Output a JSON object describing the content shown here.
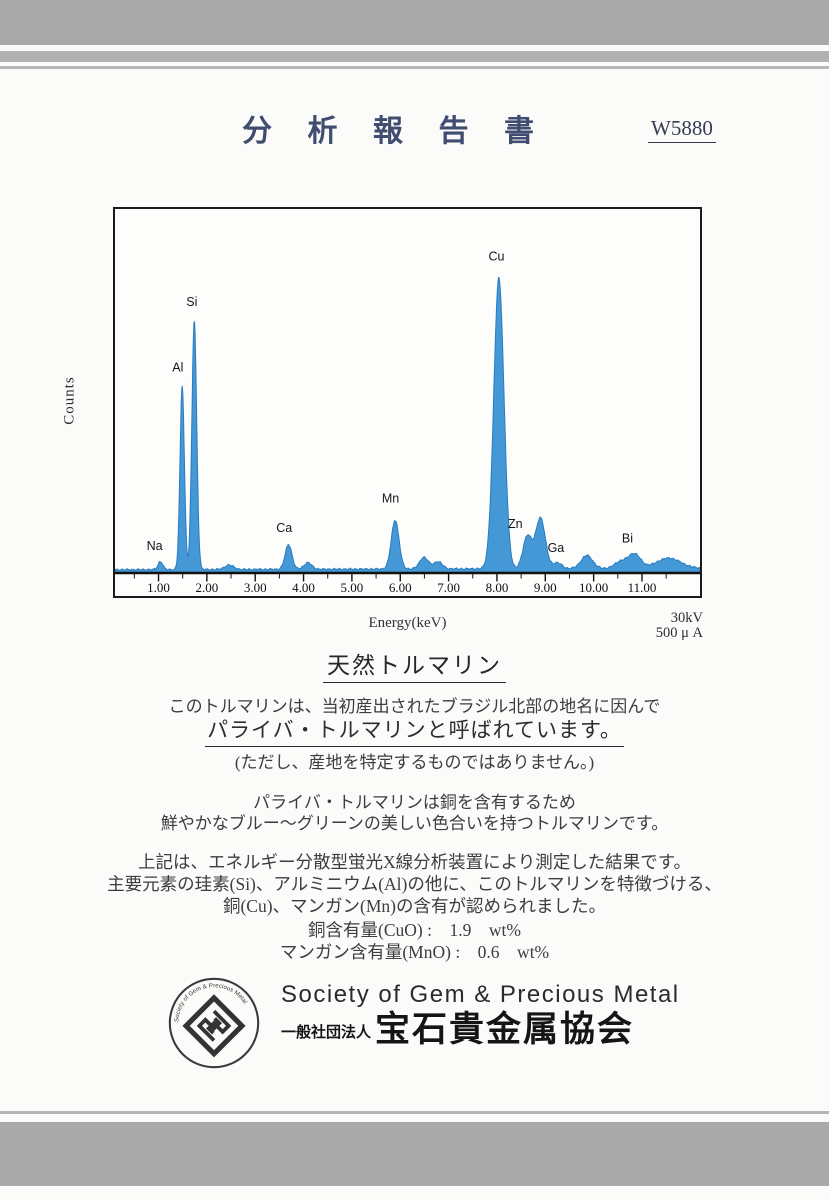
{
  "page": {
    "title": "分 析 報 告 書",
    "report_no": "W5880"
  },
  "chart_data": {
    "type": "area",
    "title": "EDX spectrum",
    "xlabel": "Energy(keV)",
    "ylabel": "Counts",
    "cond_kv": "30kV",
    "cond_ua": "500 μ A",
    "xlim": [
      0.1,
      12.2
    ],
    "x_ticks": [
      "1.00",
      "2.00",
      "3.00",
      "4.00",
      "5.00",
      "6.00",
      "7.00",
      "8.00",
      "9.00",
      "10.00",
      "11.00"
    ],
    "grid": false,
    "color": "#4598d6",
    "stroke": "#2a7cc0",
    "background": 0.009,
    "peaks": [
      {
        "element": "Na",
        "keV": 1.04,
        "h": 0.022,
        "sigma": 0.05,
        "label_at": [
          0.92,
          0.055
        ]
      },
      {
        "element": "Al",
        "keV": 1.49,
        "h": 0.505,
        "sigma": 0.045,
        "label_at": [
          1.4,
          0.545
        ]
      },
      {
        "element": "Si",
        "keV": 1.74,
        "h": 0.685,
        "sigma": 0.05,
        "label_at": [
          1.69,
          0.725
        ]
      },
      {
        "element": null,
        "keV": 2.46,
        "h": 0.012,
        "sigma": 0.09
      },
      {
        "element": "Ca",
        "keV": 3.69,
        "h": 0.068,
        "sigma": 0.07,
        "label_at": [
          3.6,
          0.105
        ]
      },
      {
        "element": null,
        "keV": 4.09,
        "h": 0.018,
        "sigma": 0.08
      },
      {
        "element": "Mn",
        "keV": 5.895,
        "h": 0.135,
        "sigma": 0.08,
        "label_at": [
          5.8,
          0.185
        ]
      },
      {
        "element": null,
        "keV": 6.49,
        "h": 0.032,
        "sigma": 0.09
      },
      {
        "element": null,
        "keV": 6.78,
        "h": 0.02,
        "sigma": 0.09
      },
      {
        "element": "Cu",
        "keV": 8.04,
        "h": 0.8,
        "sigma": 0.105,
        "label_at": [
          7.99,
          0.85
        ]
      },
      {
        "element": "Zn",
        "keV": 8.63,
        "h": 0.09,
        "sigma": 0.09,
        "label_at": [
          8.38,
          0.115
        ]
      },
      {
        "element": null,
        "keV": 8.9,
        "h": 0.14,
        "sigma": 0.1
      },
      {
        "element": "Ga",
        "keV": 9.25,
        "h": 0.016,
        "sigma": 0.09,
        "label_at": [
          9.22,
          0.05
        ]
      },
      {
        "element": null,
        "keV": 9.86,
        "h": 0.036,
        "sigma": 0.12
      },
      {
        "element": null,
        "keV": 10.55,
        "h": 0.018,
        "sigma": 0.12
      },
      {
        "element": "Bi",
        "keV": 10.84,
        "h": 0.04,
        "sigma": 0.13,
        "label_at": [
          10.7,
          0.075
        ]
      },
      {
        "element": null,
        "keV": 11.55,
        "h": 0.028,
        "sigma": 0.25
      }
    ]
  },
  "sample": {
    "heading": "天然トルマリン",
    "intro1": "このトルマリンは、当初産出されたブラジル北部の地名に因んで",
    "intro2": "パライバ・トルマリンと呼ばれています。",
    "intro3": "(ただし、産地を特定するものではありません。)",
    "desc1": "パライバ・トルマリンは銅を含有するため",
    "desc2": "鮮やかなブルー～グリーンの美しい色合いを持つトルマリンです。",
    "result1": "上記は、エネルギー分散型蛍光X線分析装置により測定した結果です。",
    "result2": "主要元素の珪素(Si)、アルミニウム(Al)の他に、このトルマリンを特徴づける、",
    "result3": "銅(Cu)、マンガン(Mn)の含有が認められました。",
    "cu_amount": "銅含有量(CuO) :　1.9　wt%",
    "mn_amount": "マンガン含有量(MnO) :　0.6　wt%"
  },
  "footer": {
    "society_en": "Society of Gem & Precious Metal",
    "org_type": "一般社団法人",
    "org_name": "宝石貴金属協会"
  }
}
